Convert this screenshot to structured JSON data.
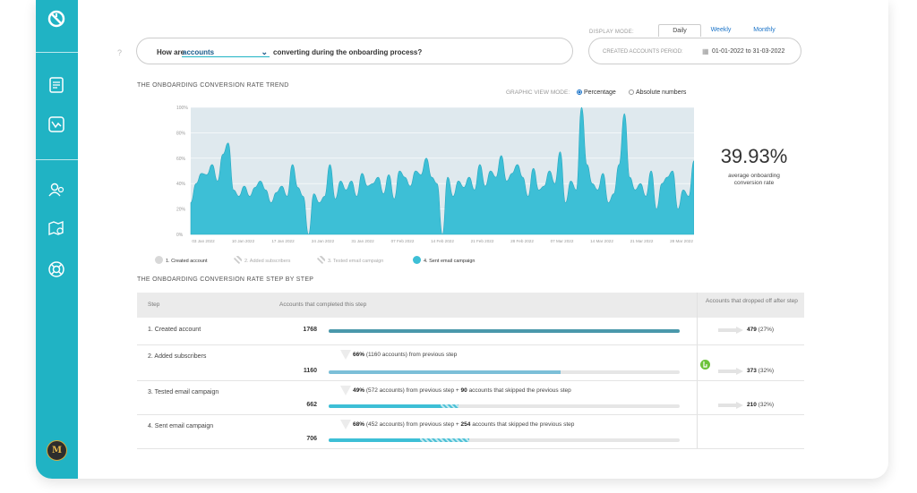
{
  "question": {
    "prefix": "How are",
    "subject": "accounts",
    "suffix": "converting during the onboarding process?",
    "help_mark": "?"
  },
  "display_mode": {
    "label": "DISPLAY MODE:",
    "tabs": [
      "Daily",
      "Weekly",
      "Monthly"
    ],
    "active": "Daily"
  },
  "period": {
    "label": "CREATED ACCOUNTS PERIOD:",
    "value": "01-01-2022 to 31-03-2022"
  },
  "trend": {
    "title": "THE ONBOARDING CONVERSION RATE TREND",
    "view_mode_label": "GRAPHIC VIEW MODE:",
    "view_options": [
      "Percentage",
      "Absolute numbers"
    ],
    "selected_view": "Percentage",
    "average_value": "39.93%",
    "average_label": "average onboarding conversion rate"
  },
  "chart_data": {
    "type": "area",
    "title": "",
    "xlabel": "",
    "ylabel": "",
    "ylim": [
      0,
      100
    ],
    "yticks": [
      "0%",
      "20%",
      "40%",
      "60%",
      "80%",
      "100%"
    ],
    "xticks": [
      "03 Jan 2022",
      "10 Jan 2022",
      "17 Jan 2022",
      "24 Jan 2022",
      "31 Jan 2022",
      "07 Feb 2022",
      "14 Feb 2022",
      "21 Feb 2022",
      "28 Feb 2022",
      "07 Mar 2022",
      "14 Mar 2022",
      "21 Mar 2022",
      "28 Mar 2022"
    ],
    "grid": true,
    "color": "#3dbfd6",
    "series": [
      {
        "values": [
          25,
          40,
          48,
          47,
          55,
          42,
          63,
          72,
          35,
          30,
          38,
          30,
          37,
          42,
          35,
          25,
          33,
          38,
          30,
          55,
          37,
          30,
          0,
          32,
          25,
          30,
          55,
          28,
          42,
          35,
          42,
          30,
          48,
          38,
          40,
          45,
          32,
          47,
          28,
          50,
          45,
          38,
          50,
          47,
          60,
          45,
          40,
          0,
          45,
          30,
          42,
          37,
          45,
          35,
          55,
          38,
          50,
          45,
          62,
          42,
          48,
          55,
          45,
          30,
          52,
          35,
          38,
          50,
          40,
          65,
          25,
          42,
          35,
          100,
          55,
          40,
          35,
          48,
          25,
          32,
          55,
          95,
          45,
          35,
          40,
          30,
          50,
          20,
          40,
          45,
          50,
          20,
          35,
          30,
          58
        ]
      }
    ],
    "legend": [
      "1. Created account",
      "2. Added subscribers",
      "3. Tested email campaign",
      "4. Sent email campaign"
    ],
    "legend_active": "4. Sent email campaign"
  },
  "steps_section": {
    "title": "THE ONBOARDING CONVERSION RATE STEP BY STEP",
    "headers": {
      "step": "Step",
      "completed": "Accounts that completed this step",
      "dropped": "Accounts that dropped off after step"
    },
    "rows": [
      {
        "name": "1. Created account",
        "count": "1768",
        "fill": 1.0,
        "hatch": 0,
        "note_bold": "",
        "note_text": "",
        "note_bold2": "",
        "note_text2": "",
        "drop_bold": "479",
        "drop_text": "(27%)"
      },
      {
        "name": "2. Added subscribers",
        "count": "1160",
        "fill": 0.66,
        "hatch": 0,
        "note_bold": "66%",
        "note_text": "(1160 accounts) from previous step",
        "note_bold2": "",
        "note_text2": "",
        "drop_bold": "373",
        "drop_text": "(32%)"
      },
      {
        "name": "3. Tested email campaign",
        "count": "662",
        "fill": 0.32,
        "hatch": 0.05,
        "note_bold": "49%",
        "note_text": "(572 accounts) from previous step +",
        "note_bold2": "90",
        "note_text2": "accounts that skipped the previous step",
        "drop_bold": "210",
        "drop_text": "(32%)"
      },
      {
        "name": "4. Sent email campaign",
        "count": "706",
        "fill": 0.26,
        "hatch": 0.14,
        "note_bold": "68%",
        "note_text": "(452 accounts) from previous step +",
        "note_bold2": "254",
        "note_text2": "accounts that skipped the previous step",
        "drop_bold": "",
        "drop_text": ""
      }
    ]
  },
  "sidebar": {
    "avatar_initial": "M",
    "items": [
      "logo-icon",
      "report-icon",
      "funnel-chart-icon",
      "users-icon",
      "map-icon",
      "help-lifebuoy-icon"
    ]
  },
  "colors": {
    "brand": "#20b3c4",
    "bar_dark": "#4a98ab",
    "bar_mid": "#7cbfd8",
    "bar_light": "#3dbfd6",
    "link": "#1a73c8"
  }
}
